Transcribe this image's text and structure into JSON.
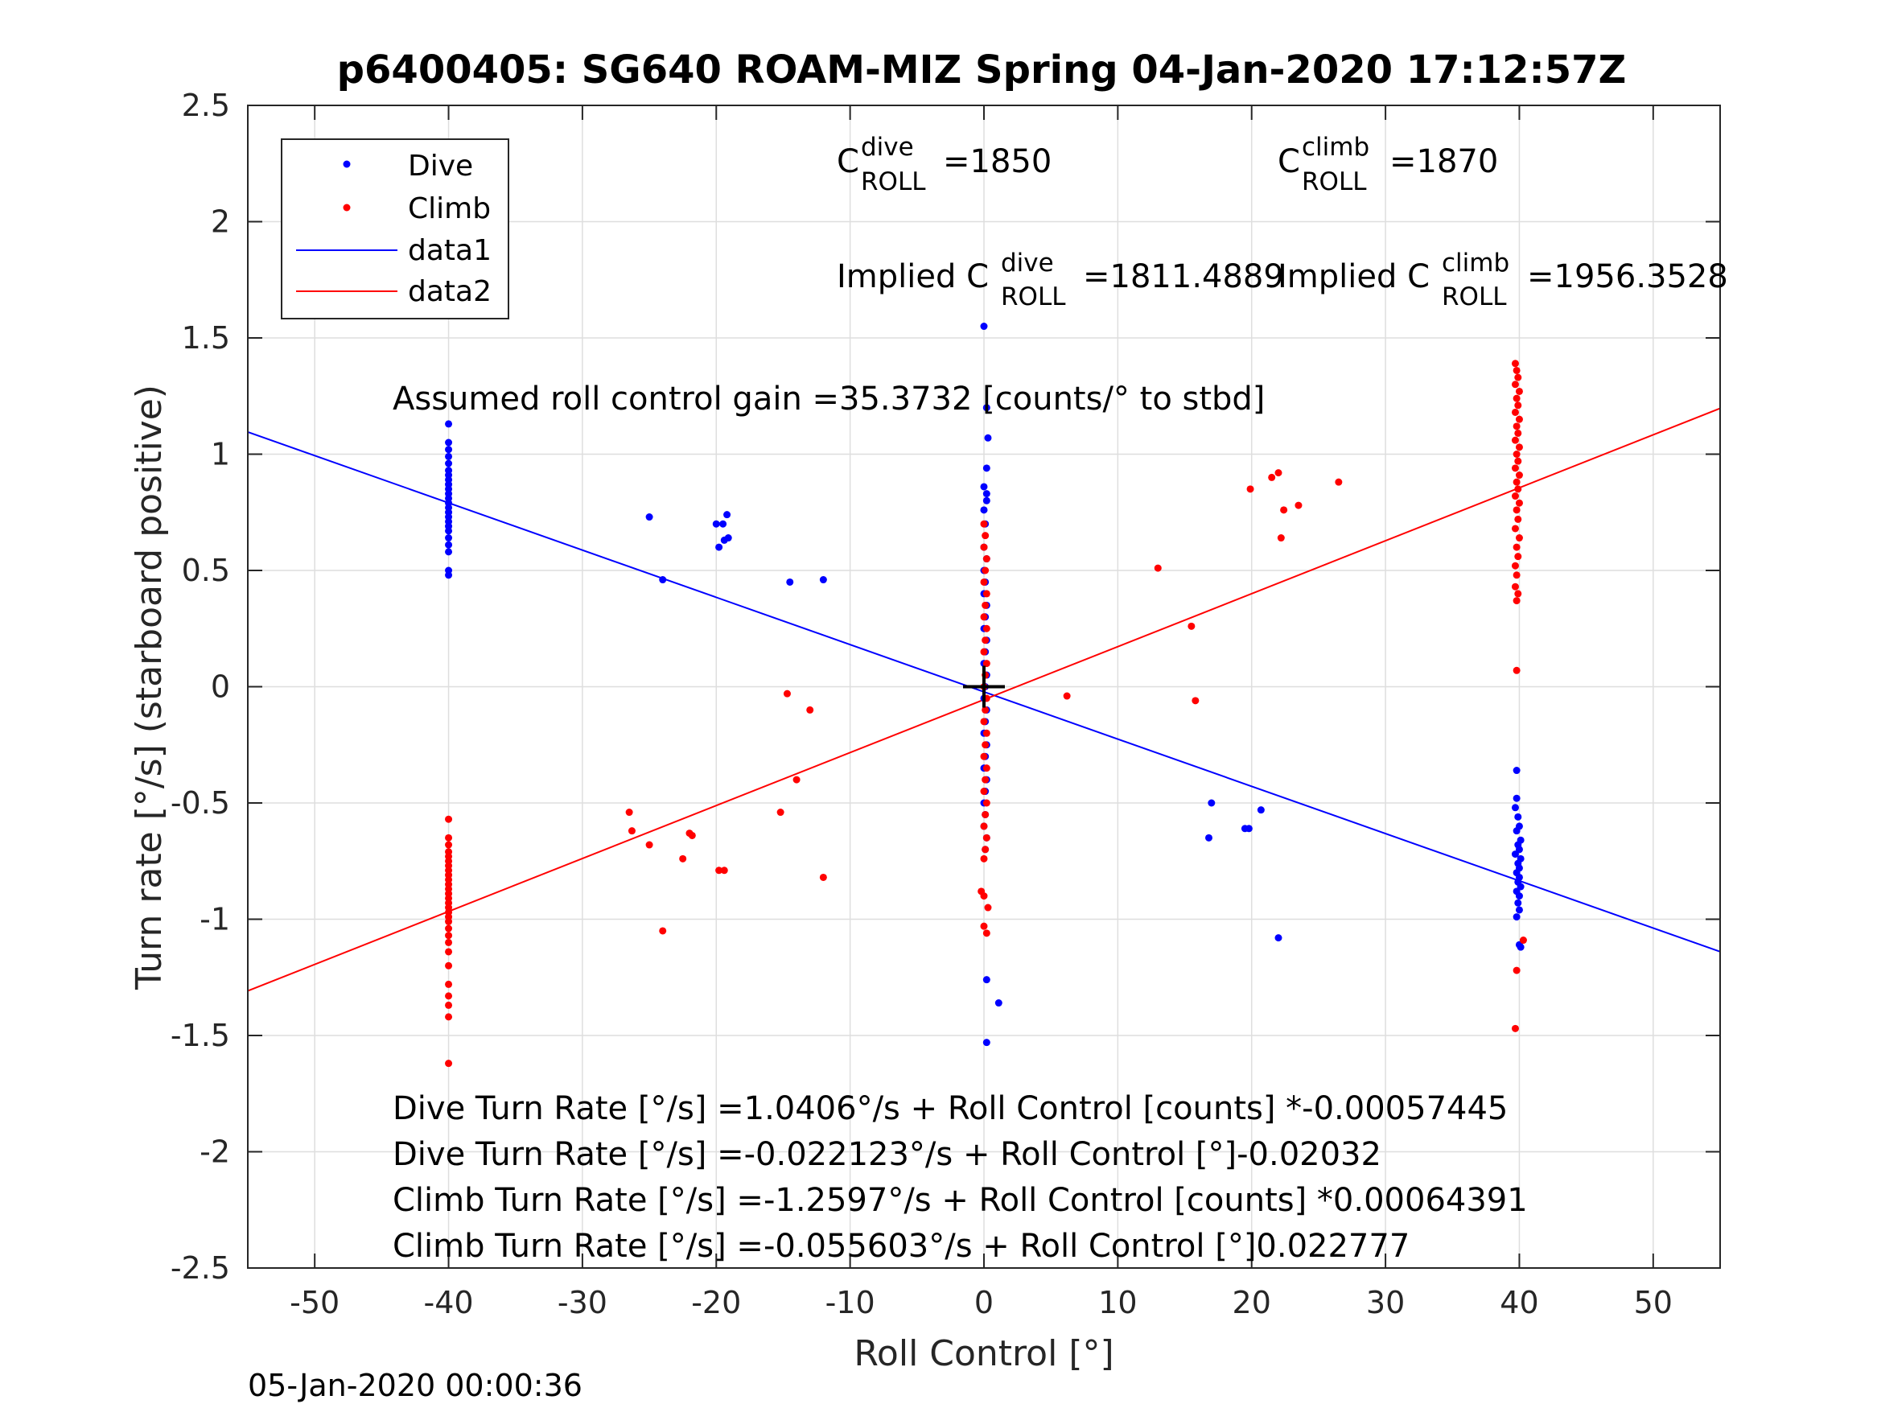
{
  "title": "p6400405: SG640 ROAM-MIZ Spring 04-Jan-2020 17:12:57Z",
  "footer_timestamp": "05-Jan-2020 00:00:36",
  "chart_data": {
    "type": "scatter",
    "title": "p6400405: SG640 ROAM-MIZ Spring 04-Jan-2020 17:12:57Z",
    "xlabel": "Roll Control [°]",
    "ylabel": "Turn rate [°/s] (starboard positive)",
    "xlim": [
      -55,
      55
    ],
    "ylim": [
      -2.5,
      2.5
    ],
    "xticks": [
      -50,
      -40,
      -30,
      -20,
      -10,
      0,
      10,
      20,
      30,
      40,
      50
    ],
    "yticks": [
      -2.5,
      -2,
      -1.5,
      -1,
      -0.5,
      0,
      0.5,
      1,
      1.5,
      2,
      2.5
    ],
    "xtick_labels": [
      "-50",
      "-40",
      "-30",
      "-20",
      "-10",
      "0",
      "10",
      "20",
      "30",
      "40",
      "50"
    ],
    "ytick_labels": [
      "-2.5",
      "-2",
      "-1.5",
      "-1",
      "-0.5",
      "0",
      "0.5",
      "1",
      "1.5",
      "2",
      "2.5"
    ],
    "grid": true,
    "legend_position": "top-left",
    "colors": {
      "dive": "#0000ff",
      "climb": "#ff0000",
      "text": "#000000",
      "axis": "#262626",
      "grid": "#dedede"
    },
    "series": [
      {
        "name": "Dive",
        "kind": "scatter",
        "color": "#0000ff",
        "points": [
          [
            -40,
            1.13
          ],
          [
            -40,
            1.05
          ],
          [
            -40,
            1.02
          ],
          [
            -40,
            0.99
          ],
          [
            -40,
            0.96
          ],
          [
            -40,
            0.93
          ],
          [
            -40,
            0.91
          ],
          [
            -40,
            0.89
          ],
          [
            -40,
            0.87
          ],
          [
            -40,
            0.85
          ],
          [
            -40,
            0.83
          ],
          [
            -40,
            0.81
          ],
          [
            -40,
            0.79
          ],
          [
            -40,
            0.77
          ],
          [
            -40,
            0.75
          ],
          [
            -40,
            0.73
          ],
          [
            -40,
            0.71
          ],
          [
            -40,
            0.69
          ],
          [
            -40,
            0.67
          ],
          [
            -40,
            0.64
          ],
          [
            -40,
            0.61
          ],
          [
            -40,
            0.58
          ],
          [
            -40,
            0.5
          ],
          [
            -40,
            0.48
          ],
          [
            -25,
            0.73
          ],
          [
            -24,
            0.46
          ],
          [
            -20,
            0.7
          ],
          [
            -19.5,
            0.7
          ],
          [
            -19.2,
            0.74
          ],
          [
            -19.8,
            0.6
          ],
          [
            -19.4,
            0.63
          ],
          [
            -19.1,
            0.64
          ],
          [
            -14.5,
            0.45
          ],
          [
            -12,
            0.46
          ],
          [
            0,
            1.55
          ],
          [
            0.2,
            1.2
          ],
          [
            0.3,
            1.07
          ],
          [
            0.2,
            0.94
          ],
          [
            0,
            0.86
          ],
          [
            0.2,
            0.83
          ],
          [
            0.2,
            0.8
          ],
          [
            0,
            0.76
          ],
          [
            0.1,
            0.7
          ],
          [
            0,
            0.6
          ],
          [
            0.2,
            0.55
          ],
          [
            0,
            0.5
          ],
          [
            0.1,
            0.45
          ],
          [
            0,
            0.4
          ],
          [
            0.2,
            0.35
          ],
          [
            0.1,
            0.3
          ],
          [
            0,
            0.25
          ],
          [
            0.2,
            0.2
          ],
          [
            0.1,
            0.15
          ],
          [
            0,
            0.1
          ],
          [
            0.2,
            0.05
          ],
          [
            0.1,
            0.0
          ],
          [
            0,
            -0.05
          ],
          [
            0.2,
            -0.1
          ],
          [
            0.1,
            -0.15
          ],
          [
            0,
            -0.2
          ],
          [
            0.2,
            -0.25
          ],
          [
            0.1,
            -0.3
          ],
          [
            0,
            -0.35
          ],
          [
            0.2,
            -0.4
          ],
          [
            0.1,
            -0.45
          ],
          [
            0,
            -0.5
          ],
          [
            0.1,
            -0.55
          ],
          [
            0,
            -0.6
          ],
          [
            0.2,
            -0.65
          ],
          [
            0.1,
            -0.7
          ],
          [
            0.2,
            -1.26
          ],
          [
            1.1,
            -1.36
          ],
          [
            0.2,
            -1.53
          ],
          [
            17,
            -0.5
          ],
          [
            16.8,
            -0.65
          ],
          [
            19.5,
            -0.61
          ],
          [
            19.8,
            -0.61
          ],
          [
            20.7,
            -0.53
          ],
          [
            22,
            -1.08
          ],
          [
            39.8,
            -0.36
          ],
          [
            39.8,
            -0.48
          ],
          [
            39.7,
            -0.52
          ],
          [
            39.9,
            -0.56
          ],
          [
            40,
            -0.6
          ],
          [
            39.8,
            -0.62
          ],
          [
            40.1,
            -0.66
          ],
          [
            39.9,
            -0.68
          ],
          [
            40,
            -0.7
          ],
          [
            39.7,
            -0.72
          ],
          [
            40.1,
            -0.74
          ],
          [
            39.9,
            -0.76
          ],
          [
            40,
            -0.78
          ],
          [
            39.8,
            -0.8
          ],
          [
            40,
            -0.82
          ],
          [
            39.9,
            -0.84
          ],
          [
            40.1,
            -0.86
          ],
          [
            39.8,
            -0.88
          ],
          [
            40,
            -0.9
          ],
          [
            39.9,
            -0.93
          ],
          [
            40,
            -0.96
          ],
          [
            39.8,
            -0.99
          ],
          [
            40,
            -1.11
          ],
          [
            40.1,
            -1.12
          ]
        ]
      },
      {
        "name": "Climb",
        "kind": "scatter",
        "color": "#ff0000",
        "points": [
          [
            -40,
            -0.57
          ],
          [
            -40,
            -0.65
          ],
          [
            -40,
            -0.68
          ],
          [
            -40,
            -0.71
          ],
          [
            -40,
            -0.73
          ],
          [
            -40,
            -0.75
          ],
          [
            -40,
            -0.77
          ],
          [
            -40,
            -0.79
          ],
          [
            -40,
            -0.81
          ],
          [
            -40,
            -0.83
          ],
          [
            -40,
            -0.85
          ],
          [
            -40,
            -0.87
          ],
          [
            -40,
            -0.89
          ],
          [
            -40,
            -0.91
          ],
          [
            -40,
            -0.93
          ],
          [
            -40,
            -0.95
          ],
          [
            -40,
            -0.97
          ],
          [
            -40,
            -0.99
          ],
          [
            -40,
            -1.01
          ],
          [
            -40,
            -1.04
          ],
          [
            -40,
            -1.07
          ],
          [
            -40,
            -1.1
          ],
          [
            -40,
            -1.14
          ],
          [
            -40,
            -1.2
          ],
          [
            -40,
            -1.28
          ],
          [
            -40,
            -1.33
          ],
          [
            -40,
            -1.37
          ],
          [
            -40,
            -1.42
          ],
          [
            -40,
            -1.62
          ],
          [
            -26.5,
            -0.54
          ],
          [
            -26.3,
            -0.62
          ],
          [
            -25,
            -0.68
          ],
          [
            -24,
            -1.05
          ],
          [
            -22.5,
            -0.74
          ],
          [
            -22,
            -0.63
          ],
          [
            -21.8,
            -0.64
          ],
          [
            -19.8,
            -0.79
          ],
          [
            -19.4,
            -0.79
          ],
          [
            -15.2,
            -0.54
          ],
          [
            -14.7,
            -0.03
          ],
          [
            -14,
            -0.4
          ],
          [
            -13,
            -0.1
          ],
          [
            -12,
            -0.82
          ],
          [
            0,
            0.7
          ],
          [
            0.1,
            0.65
          ],
          [
            0,
            0.6
          ],
          [
            0.2,
            0.55
          ],
          [
            0.1,
            0.5
          ],
          [
            0,
            0.45
          ],
          [
            0.2,
            0.4
          ],
          [
            0.1,
            0.35
          ],
          [
            0,
            0.3
          ],
          [
            0.2,
            0.25
          ],
          [
            0.1,
            0.2
          ],
          [
            0,
            0.15
          ],
          [
            0.2,
            0.1
          ],
          [
            0.1,
            0.05
          ],
          [
            0,
            0.0
          ],
          [
            0.2,
            -0.05
          ],
          [
            0.1,
            -0.1
          ],
          [
            0,
            -0.15
          ],
          [
            0.2,
            -0.2
          ],
          [
            0.1,
            -0.25
          ],
          [
            0,
            -0.3
          ],
          [
            0.2,
            -0.35
          ],
          [
            0.1,
            -0.4
          ],
          [
            0,
            -0.45
          ],
          [
            0.2,
            -0.5
          ],
          [
            0.1,
            -0.55
          ],
          [
            0,
            -0.6
          ],
          [
            0.2,
            -0.65
          ],
          [
            0.1,
            -0.7
          ],
          [
            0,
            -0.74
          ],
          [
            -0.2,
            -0.88
          ],
          [
            0,
            -0.9
          ],
          [
            0.3,
            -0.95
          ],
          [
            0,
            -1.03
          ],
          [
            0.2,
            -1.06
          ],
          [
            6.2,
            -0.04
          ],
          [
            13,
            0.51
          ],
          [
            15.5,
            0.26
          ],
          [
            15.8,
            -0.06
          ],
          [
            19.9,
            0.85
          ],
          [
            21.5,
            0.9
          ],
          [
            22,
            0.92
          ],
          [
            22.2,
            0.64
          ],
          [
            22.4,
            0.76
          ],
          [
            23.5,
            0.78
          ],
          [
            26.5,
            0.88
          ],
          [
            39.7,
            1.39
          ],
          [
            39.8,
            1.36
          ],
          [
            39.9,
            1.33
          ],
          [
            39.7,
            1.3
          ],
          [
            40,
            1.27
          ],
          [
            39.8,
            1.24
          ],
          [
            39.9,
            1.21
          ],
          [
            39.7,
            1.18
          ],
          [
            40,
            1.15
          ],
          [
            39.8,
            1.12
          ],
          [
            39.9,
            1.09
          ],
          [
            39.7,
            1.06
          ],
          [
            40,
            1.03
          ],
          [
            39.8,
            1.0
          ],
          [
            39.9,
            0.97
          ],
          [
            39.7,
            0.94
          ],
          [
            40,
            0.91
          ],
          [
            39.8,
            0.88
          ],
          [
            39.9,
            0.85
          ],
          [
            39.7,
            0.82
          ],
          [
            40,
            0.79
          ],
          [
            39.8,
            0.76
          ],
          [
            39.9,
            0.72
          ],
          [
            39.7,
            0.68
          ],
          [
            40,
            0.64
          ],
          [
            39.8,
            0.6
          ],
          [
            39.9,
            0.56
          ],
          [
            39.7,
            0.52
          ],
          [
            39.8,
            0.48
          ],
          [
            39.7,
            0.43
          ],
          [
            39.9,
            0.4
          ],
          [
            39.8,
            0.37
          ],
          [
            39.8,
            0.07
          ],
          [
            40.3,
            -1.09
          ],
          [
            39.8,
            -1.22
          ],
          [
            39.7,
            -1.47
          ]
        ]
      },
      {
        "name": "data1",
        "kind": "line",
        "color": "#0000ff",
        "x": [
          -55,
          55
        ],
        "y": [
          1.0954,
          -1.1396
        ]
      },
      {
        "name": "data2",
        "kind": "line",
        "color": "#ff0000",
        "x": [
          -55,
          55
        ],
        "y": [
          -1.3083,
          1.1971
        ]
      }
    ],
    "reference_marker": {
      "x": 0,
      "y": 0,
      "symbol": "+"
    },
    "legend_entries": [
      {
        "label": "Dive",
        "kind": "marker",
        "color": "#0000ff"
      },
      {
        "label": "Climb",
        "kind": "marker",
        "color": "#ff0000"
      },
      {
        "label": "data1",
        "kind": "line",
        "color": "#0000ff"
      },
      {
        "label": "data2",
        "kind": "line",
        "color": "#ff0000"
      }
    ],
    "annotations": {
      "c_dive": {
        "prefix": "C",
        "sup": "dive",
        "sub": "ROLL",
        "value": "=1850"
      },
      "c_climb": {
        "prefix": "C",
        "sup": "climb",
        "sub": "ROLL",
        "value": "=1870"
      },
      "implied_dive": {
        "prefix": "Implied C",
        "sup": "dive",
        "sub": "ROLL",
        "value": "=1811.4889"
      },
      "implied_climb": {
        "prefix": "Implied C",
        "sup": "climb",
        "sub": "ROLL",
        "value": "=1956.3528"
      },
      "gain": "Assumed roll control gain =35.3732 [counts/° to stbd]",
      "equations": [
        "Dive Turn Rate [°/s] =1.0406°/s + Roll Control [counts] *-0.00057445",
        "Dive Turn Rate [°/s] =-0.022123°/s + Roll Control [°]-0.02032",
        "Climb Turn Rate [°/s] =-1.2597°/s + Roll Control [counts] *0.00064391",
        "Climb Turn Rate [°/s] =-0.055603°/s + Roll Control [°]0.022777"
      ]
    }
  }
}
